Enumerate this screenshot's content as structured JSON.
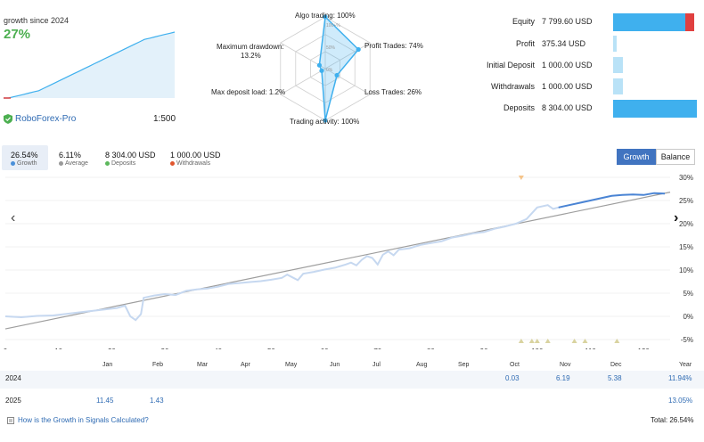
{
  "widget": {
    "caption": "growth since 2024",
    "value": "27%",
    "broker": "RoboForex-Pro",
    "leverage": "1:500",
    "mini_series": [
      0,
      0,
      0.5,
      1,
      1.5,
      2,
      2.5,
      3,
      4,
      5,
      6,
      7,
      8,
      9,
      10,
      11,
      12,
      13,
      14,
      15,
      16,
      17,
      18,
      19,
      20,
      21,
      22,
      23,
      24,
      24.5,
      25,
      25.5,
      26,
      26.5,
      27
    ]
  },
  "radar": {
    "labels": {
      "top": "Algo trading: 100%",
      "right_top": "Profit Trades: 74%",
      "right_bottom": "Loss Trades: 26%",
      "bottom": "Trading activity: 100%",
      "left_bottom": "Max deposit load: 1.2%",
      "left_top_1": "Maximum drawdown:",
      "left_top_2": "13.2%"
    },
    "ring_labels": [
      "100+%",
      "50%",
      "0%"
    ],
    "values": [
      100,
      74,
      26,
      100,
      1.2,
      13.2
    ]
  },
  "stats": [
    {
      "label": "Equity",
      "value": "7 799.60 USD",
      "fraction": 0.93,
      "color": "#3fb0ee",
      "red_tail": true
    },
    {
      "label": "Profit",
      "value": "375.34 USD",
      "fraction": 0.045,
      "color": "#b9e2f7"
    },
    {
      "label": "Initial Deposit",
      "value": "1 000.00 USD",
      "fraction": 0.12,
      "color": "#b9e2f7"
    },
    {
      "label": "Withdrawals",
      "value": "1 000.00 USD",
      "fraction": 0.12,
      "color": "#b9e2f7"
    },
    {
      "label": "Deposits",
      "value": "8 304.00 USD",
      "fraction": 1.0,
      "color": "#3fb0ee"
    }
  ],
  "summary": [
    {
      "value": "26.54%",
      "label": "Growth",
      "color": "#4a90d9"
    },
    {
      "value": "6.11%",
      "label": "Average",
      "color": "#999999"
    },
    {
      "value": "8 304.00 USD",
      "label": "Deposits",
      "color": "#5cb85c"
    },
    {
      "value": "1 000.00 USD",
      "label": "Withdrawals",
      "color": "#e0562e"
    }
  ],
  "toggle": {
    "growth": "Growth",
    "balance": "Balance"
  },
  "chart_data": {
    "type": "line",
    "x_ticks": [
      "0",
      "10",
      "20",
      "30",
      "40",
      "50",
      "60",
      "70",
      "80",
      "90",
      "100",
      "110",
      "120"
    ],
    "y_ticks": [
      "30%",
      "25%",
      "20%",
      "15%",
      "10%",
      "5%",
      "0%",
      "-5%"
    ],
    "ylim": [
      -5,
      30
    ],
    "xlim": [
      0,
      125
    ],
    "trend": {
      "x": [
        0,
        125
      ],
      "y": [
        -2.7,
        26.8
      ]
    },
    "series": [
      {
        "values": [
          [
            0,
            0
          ],
          [
            3,
            -0.2
          ],
          [
            6,
            0.1
          ],
          [
            9,
            0.2
          ],
          [
            12,
            0.6
          ],
          [
            15,
            1
          ],
          [
            18,
            1.4
          ],
          [
            21,
            1.8
          ],
          [
            22.5,
            2.3
          ],
          [
            23.5,
            0
          ],
          [
            24.5,
            -0.8
          ],
          [
            25.5,
            0.5
          ],
          [
            26,
            4
          ],
          [
            28,
            4.5
          ],
          [
            30,
            4.8
          ],
          [
            32,
            4.6
          ],
          [
            34,
            5.5
          ],
          [
            36,
            5.8
          ],
          [
            38,
            6
          ],
          [
            40,
            6.4
          ],
          [
            42,
            7
          ],
          [
            44,
            7.2
          ],
          [
            46,
            7.4
          ],
          [
            48,
            7.6
          ],
          [
            50,
            7.9
          ],
          [
            52,
            8.3
          ],
          [
            53,
            9
          ],
          [
            54,
            8.4
          ],
          [
            55,
            7.8
          ],
          [
            56,
            9.2
          ],
          [
            58,
            9.6
          ],
          [
            60,
            10.1
          ],
          [
            62,
            10.5
          ],
          [
            64,
            11.2
          ],
          [
            65,
            11.6
          ],
          [
            66,
            11
          ],
          [
            67,
            12.2
          ],
          [
            68,
            13
          ],
          [
            69,
            12.6
          ],
          [
            70,
            11.2
          ],
          [
            71,
            13.3
          ],
          [
            72,
            14
          ],
          [
            73,
            13.2
          ],
          [
            74,
            14.4
          ],
          [
            76,
            14.7
          ],
          [
            78,
            15.4
          ],
          [
            80,
            15.8
          ],
          [
            82,
            16.2
          ],
          [
            84,
            17
          ],
          [
            86,
            17.4
          ],
          [
            88,
            17.9
          ],
          [
            90,
            18.2
          ],
          [
            92,
            18.9
          ],
          [
            94,
            19.4
          ],
          [
            96,
            20
          ],
          [
            98,
            21
          ],
          [
            100,
            23.5
          ],
          [
            102,
            24
          ],
          [
            103,
            23.2
          ],
          [
            104,
            23.5
          ]
        ]
      },
      {
        "values": [
          [
            104,
            23.5
          ],
          [
            106,
            24
          ],
          [
            108,
            24.5
          ],
          [
            110,
            25
          ],
          [
            112,
            25.5
          ],
          [
            114,
            26
          ],
          [
            116,
            26.2
          ],
          [
            118,
            26.3
          ],
          [
            120,
            26.2
          ],
          [
            122,
            26.6
          ],
          [
            124,
            26.5
          ]
        ]
      }
    ],
    "markers_top": [
      97
    ],
    "markers_bottom": [
      97,
      99,
      100,
      102,
      107,
      109,
      115
    ]
  },
  "months": [
    "Jan",
    "Feb",
    "Mar",
    "Apr",
    "May",
    "Jun",
    "Jul",
    "Aug",
    "Sep",
    "Oct",
    "Nov",
    "Dec",
    "Year"
  ],
  "years": [
    {
      "year": "2024",
      "cells": {
        "Oct": "0.03",
        "Nov": "6.19",
        "Dec": "5.38"
      },
      "total": "11.94%"
    },
    {
      "year": "2025",
      "cells": {
        "Jan": "11.45",
        "Feb": "1.43"
      },
      "total": "13.05%"
    }
  ],
  "footer": {
    "link": "How is the Growth in Signals Calculated?",
    "total": "Total: 26.54%"
  }
}
